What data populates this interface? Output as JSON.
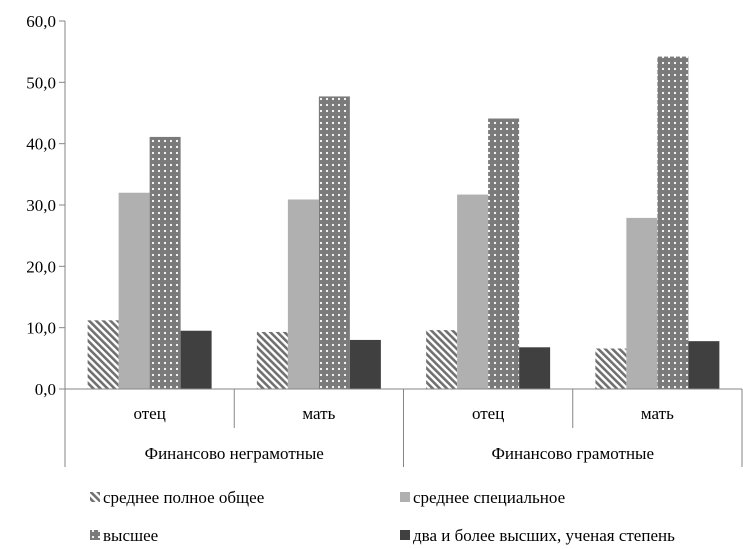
{
  "chart_data": {
    "type": "bar",
    "title": "",
    "xlabel": "",
    "ylabel": "",
    "ylim": [
      0,
      60
    ],
    "ytick_step": 10,
    "ytick_labels": [
      "0,0",
      "10,0",
      "20,0",
      "30,0",
      "40,0",
      "50,0",
      "60,0"
    ],
    "grid": false,
    "legend_position": "bottom",
    "groups": [
      {
        "label": "Финансово неграмотные",
        "categories": [
          "отец",
          "мать"
        ]
      },
      {
        "label": "Финансово грамотные",
        "categories": [
          "отец",
          "мать"
        ]
      }
    ],
    "categories": [
      "отец",
      "мать",
      "отец",
      "мать"
    ],
    "series": [
      {
        "name": "среднее полное общее",
        "pattern": "hatch",
        "color": "#808080",
        "values": [
          11.2,
          9.3,
          9.6,
          6.6
        ]
      },
      {
        "name": "среднее специальное",
        "pattern": "solid",
        "color": "#b0b0b0",
        "values": [
          32.0,
          30.9,
          31.7,
          27.9
        ]
      },
      {
        "name": "высшее",
        "pattern": "dots",
        "color": "#808080",
        "values": [
          41.1,
          47.7,
          44.1,
          54.2
        ]
      },
      {
        "name": "два и более высших, ученая степень",
        "pattern": "solid",
        "color": "#404040",
        "values": [
          9.5,
          8.0,
          6.8,
          7.8
        ]
      }
    ]
  }
}
